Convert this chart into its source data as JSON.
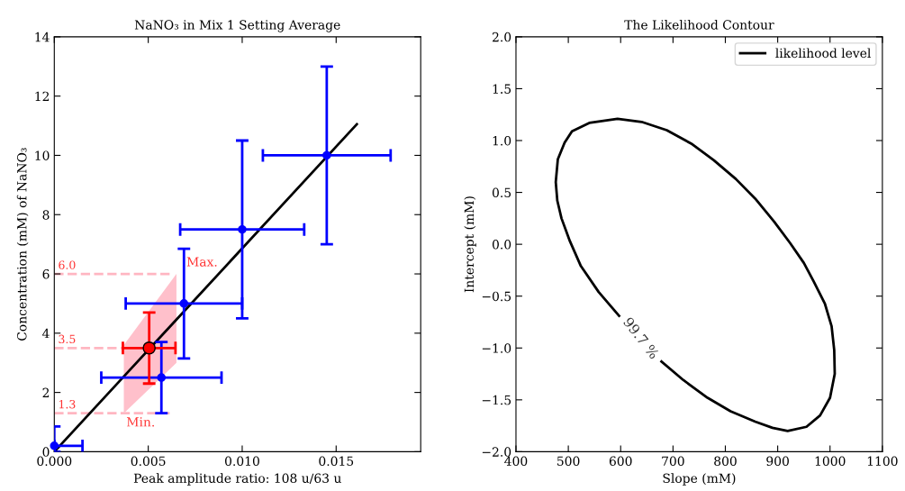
{
  "chart_data": [
    {
      "type": "scatter",
      "title": "NaNO₃ in Mix 1 Setting Average",
      "xlabel": "Peak amplitude ratio: 108 u/63 u",
      "ylabel": "Concentration (mM) of NaNO₃",
      "xlim": [
        0,
        0.0195
      ],
      "xticks": [
        {
          "value": 0,
          "label": "0.000"
        },
        {
          "value": 0.005,
          "label": "0.005"
        },
        {
          "value": 0.01,
          "label": "0.010"
        },
        {
          "value": 0.015,
          "label": "0.015"
        }
      ],
      "ylim": [
        0,
        14
      ],
      "yticks": [
        0,
        2,
        4,
        6,
        8,
        10,
        12,
        14
      ],
      "grid": false,
      "legend": false,
      "series": [
        {
          "type": "line",
          "color": "#000000",
          "x": [
            0.0,
            0.0037,
            0.0065,
            0.0161
          ],
          "values": [
            0.0,
            2.54,
            4.46,
            11.05
          ],
          "lower": [
            null,
            1.3,
            3.0,
            null
          ],
          "upper": [
            null,
            3.6,
            6.0,
            null
          ]
        },
        {
          "type": "scatter",
          "color": "#0000ff",
          "x": [
            0.0,
            0.0057,
            0.0069,
            0.01,
            0.0145
          ],
          "values": [
            0.2,
            2.5,
            5.0,
            7.5,
            10.0
          ],
          "errors": [
            [
              0.0,
              0.85
            ],
            1.2,
            1.85,
            3.0,
            3.0
          ],
          "xerrors": [
            [
              0.0,
              0.0015
            ],
            0.0032,
            0.0031,
            0.0033,
            0.0034
          ]
        },
        {
          "type": "scatter",
          "color": "#ff0000",
          "x": [
            0.00505
          ],
          "values": [
            3.5
          ],
          "errors": [
            1.2
          ],
          "xerrors": [
            0.0014
          ]
        }
      ],
      "ref_lines": [
        {
          "axis": "y",
          "value": 6.0,
          "label": "6.0",
          "color": "#ffb6c1",
          "line_style": "dashed"
        },
        {
          "axis": "y",
          "value": 3.5,
          "label": "3.5",
          "color": "#ffb6c1",
          "line_style": "dashed"
        },
        {
          "axis": "y",
          "value": 1.3,
          "label": "1.3",
          "color": "#ffb6c1",
          "line_style": "dashed"
        }
      ],
      "annotations": [
        {
          "text": "Max.",
          "x": 0.0065,
          "y": 6.0
        },
        {
          "text": "Min.",
          "x": 0.0037,
          "y": 1.3
        }
      ]
    },
    {
      "type": "line",
      "title": "The Likelihood Contour",
      "xlabel": "Slope (mM)",
      "ylabel": "Intercept (mM)",
      "xlim": [
        400,
        1100
      ],
      "xticks": [
        400,
        500,
        600,
        700,
        800,
        900,
        1000,
        1100
      ],
      "ylim": [
        -2,
        2
      ],
      "yticks": [
        {
          "value": -2,
          "label": "−2.0"
        },
        {
          "value": -1.5,
          "label": "−1.5"
        },
        {
          "value": -1,
          "label": "−1.0"
        },
        {
          "value": -0.5,
          "label": "−0.5"
        },
        {
          "value": 0,
          "label": "0.0"
        },
        {
          "value": 0.5,
          "label": "0.5"
        },
        {
          "value": 1,
          "label": "1.0"
        },
        {
          "value": 1.5,
          "label": "1.5"
        },
        {
          "value": 2,
          "label": "2.0"
        }
      ],
      "grid": false,
      "legend": "top right",
      "line_style": "solid",
      "series": [
        {
          "name": "likelihood level",
          "color": "#000000",
          "x": [
            678,
            720,
            766,
            810,
            857,
            890,
            919,
            955,
            981,
            1000,
            1009,
            1008,
            1003,
            990,
            969,
            950,
            924,
            893,
            857,
            820,
            778,
            735,
            688,
            640,
            594,
            540,
            507,
            493,
            480,
            476,
            479,
            487,
            503,
            524,
            558,
            597
          ],
          "values": [
            -1.13,
            -1.31,
            -1.48,
            -1.61,
            -1.71,
            -1.77,
            -1.8,
            -1.76,
            -1.65,
            -1.48,
            -1.25,
            -1.02,
            -0.79,
            -0.57,
            -0.36,
            -0.18,
            0.01,
            0.22,
            0.44,
            0.63,
            0.81,
            0.97,
            1.1,
            1.18,
            1.21,
            1.17,
            1.09,
            0.98,
            0.82,
            0.6,
            0.42,
            0.25,
            0.03,
            -0.21,
            -0.46,
            -0.69
          ]
        }
      ],
      "annotations": [
        "99.7 %"
      ]
    }
  ]
}
